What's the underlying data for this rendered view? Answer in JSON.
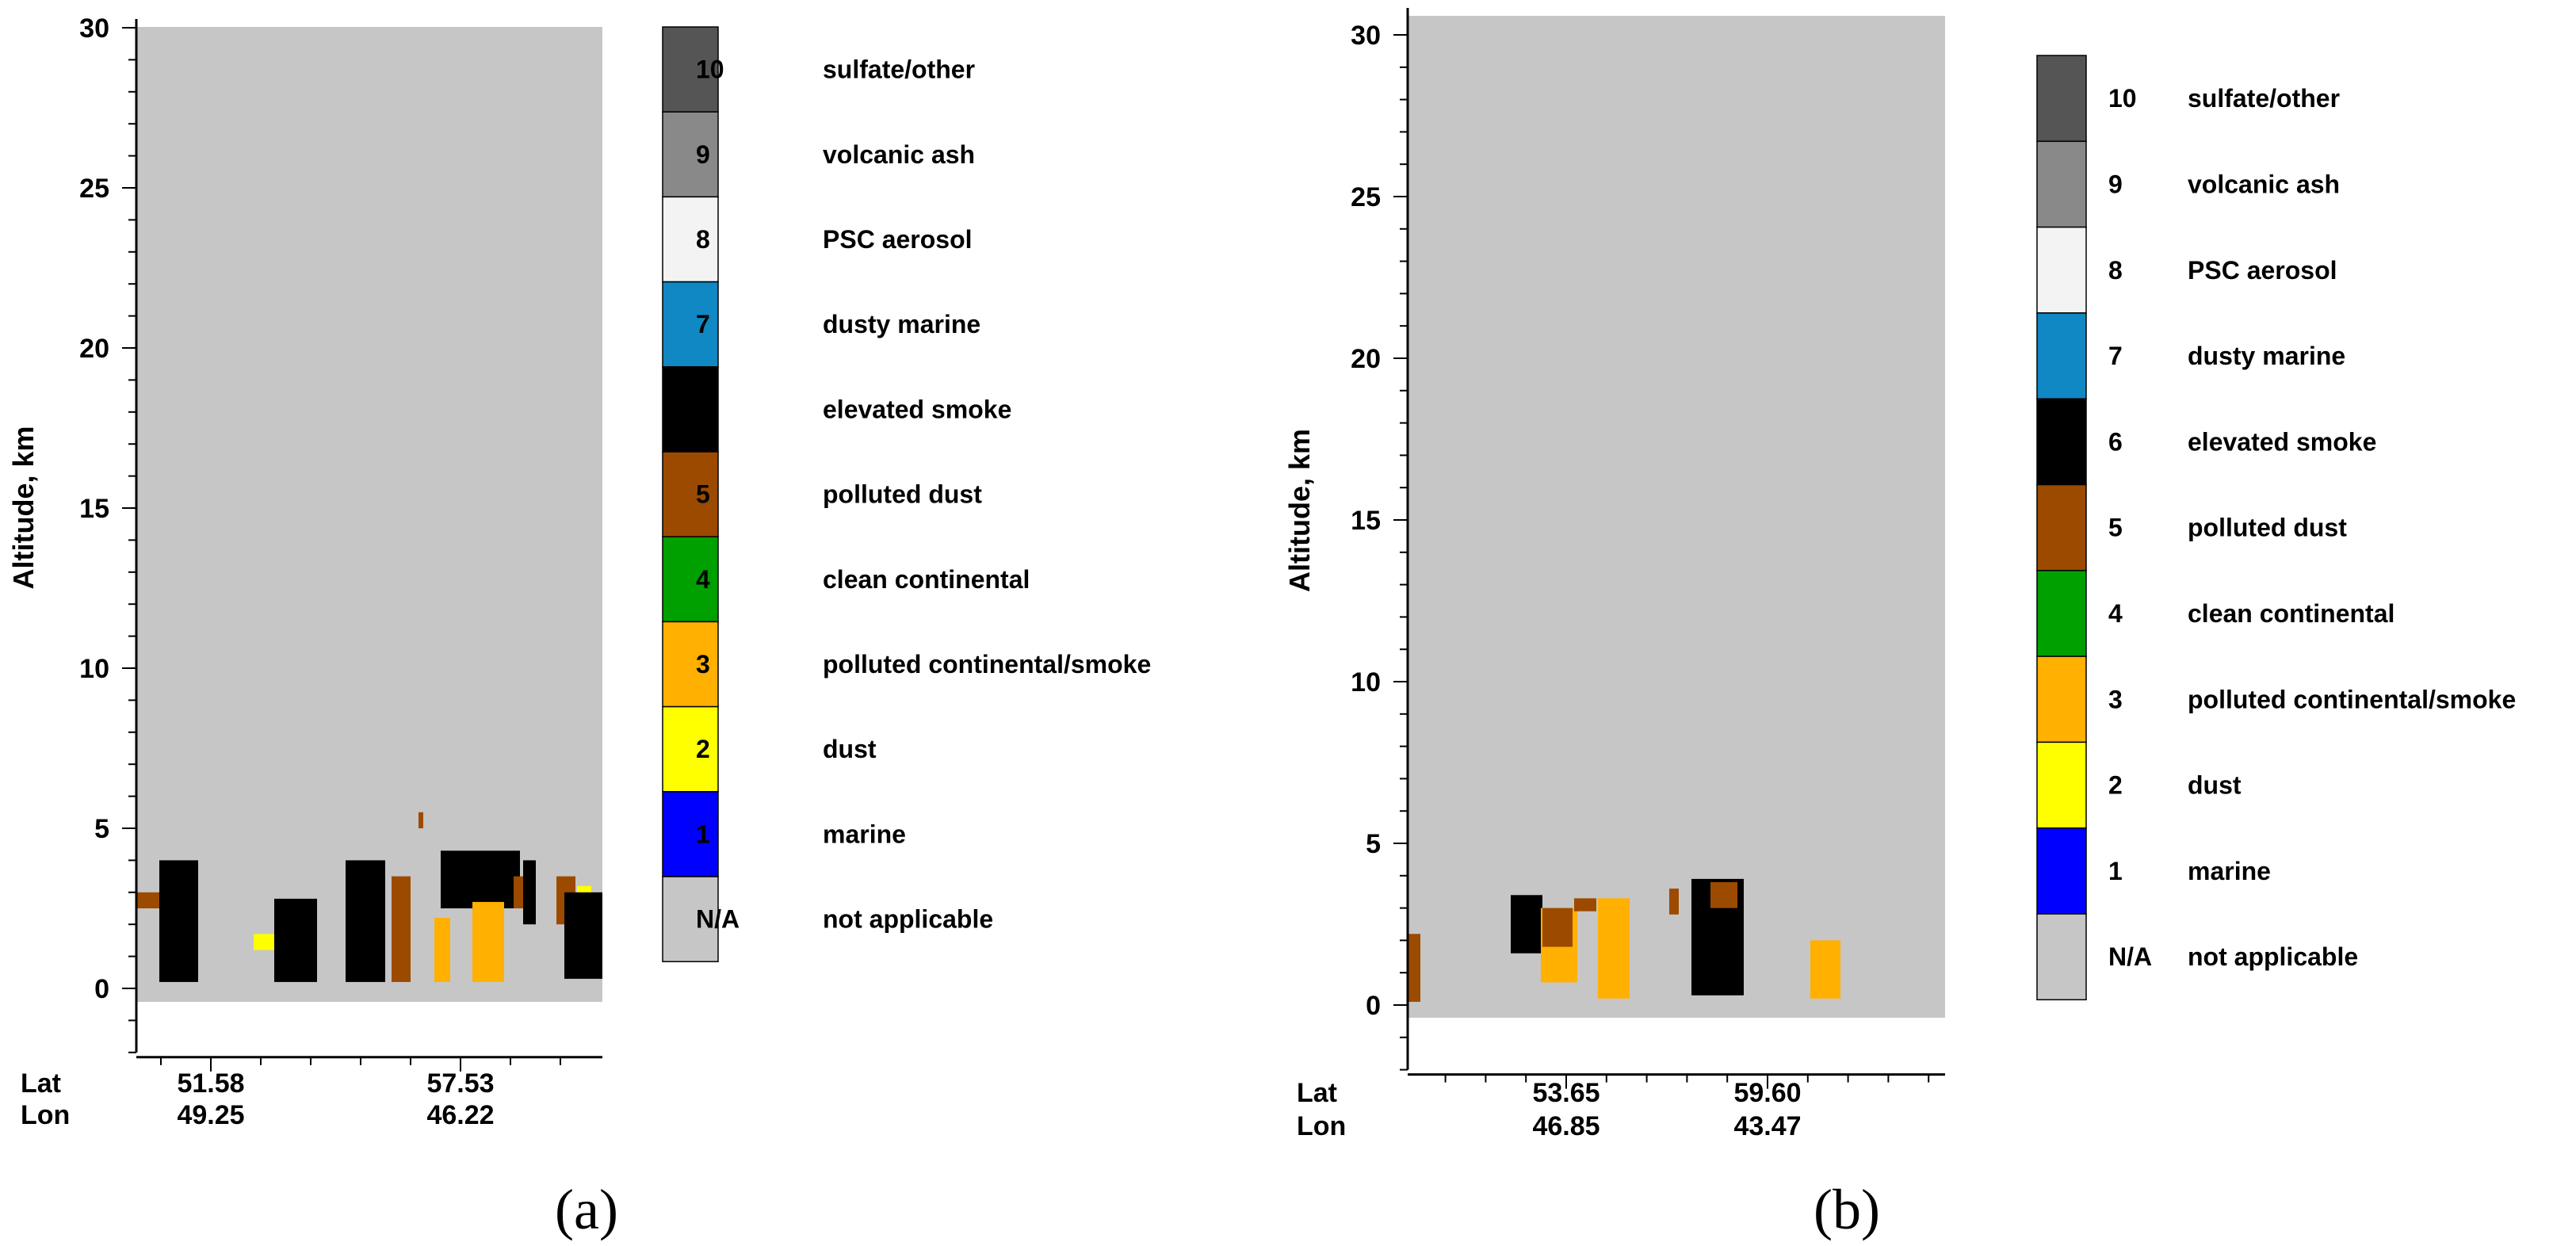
{
  "chart_data": [
    {
      "type": "heatmap",
      "panel_label": "(a)",
      "ylabel": "Altitude, km",
      "ylim": [
        -2,
        30
      ],
      "yticks": [
        "0",
        "5",
        "10",
        "15",
        "20",
        "25",
        "30"
      ],
      "x_row_labels": [
        "Lat",
        "Lon"
      ],
      "x_ticks": [
        {
          "lat": "51.58",
          "lon": "49.25"
        },
        {
          "lat": "57.53",
          "lon": "46.22"
        }
      ],
      "background_class": "N/A",
      "features": [
        {
          "class": 5,
          "altitude_km": [
            2.5,
            3.0
          ]
        },
        {
          "class": 6,
          "altitude_km": [
            0.2,
            4.0
          ]
        },
        {
          "class": 2,
          "altitude_km": [
            1.2,
            1.7
          ]
        },
        {
          "class": 6,
          "altitude_km": [
            0.2,
            2.8
          ]
        },
        {
          "class": 6,
          "altitude_km": [
            0.2,
            4.0
          ]
        },
        {
          "class": 5,
          "altitude_km": [
            0.2,
            3.5
          ]
        },
        {
          "class": 5,
          "altitude_km": [
            5.0,
            5.5
          ]
        },
        {
          "class": 3,
          "altitude_km": [
            0.2,
            2.2
          ]
        },
        {
          "class": 6,
          "altitude_km": [
            2.5,
            4.3
          ]
        },
        {
          "class": 3,
          "altitude_km": [
            0.2,
            2.7
          ]
        },
        {
          "class": 5,
          "altitude_km": [
            2.5,
            3.5
          ]
        },
        {
          "class": 6,
          "altitude_km": [
            2.0,
            4.0
          ]
        },
        {
          "class": 5,
          "altitude_km": [
            2.0,
            3.5
          ]
        },
        {
          "class": 2,
          "altitude_km": [
            2.5,
            3.2
          ]
        },
        {
          "class": 6,
          "altitude_km": [
            0.3,
            3.0
          ]
        }
      ]
    },
    {
      "type": "heatmap",
      "panel_label": "(b)",
      "ylabel": "Altitude, km",
      "ylim": [
        -2,
        30
      ],
      "yticks": [
        "0",
        "5",
        "10",
        "15",
        "20",
        "25",
        "30"
      ],
      "x_row_labels": [
        "Lat",
        "Lon"
      ],
      "x_ticks": [
        {
          "lat": "53.65",
          "lon": "46.85"
        },
        {
          "lat": "59.60",
          "lon": "43.47"
        }
      ],
      "background_class": "N/A",
      "features": [
        {
          "class": 5,
          "altitude_km": [
            0.1,
            2.2
          ]
        },
        {
          "class": 6,
          "altitude_km": [
            1.6,
            3.4
          ]
        },
        {
          "class": 3,
          "altitude_km": [
            0.7,
            3.0
          ]
        },
        {
          "class": 5,
          "altitude_km": [
            1.8,
            3.0
          ]
        },
        {
          "class": 5,
          "altitude_km": [
            2.9,
            3.3
          ]
        },
        {
          "class": 3,
          "altitude_km": [
            0.2,
            3.3
          ]
        },
        {
          "class": 5,
          "altitude_km": [
            2.8,
            3.6
          ]
        },
        {
          "class": 6,
          "altitude_km": [
            0.3,
            3.9
          ]
        },
        {
          "class": 5,
          "altitude_km": [
            3.0,
            3.8
          ]
        },
        {
          "class": 3,
          "altitude_km": [
            0.2,
            2.0
          ]
        }
      ]
    }
  ],
  "legend": [
    {
      "code": "10",
      "label": "sulfate/other",
      "color": "#555555"
    },
    {
      "code": "9",
      "label": "volcanic ash",
      "color": "#898989"
    },
    {
      "code": "8",
      "label": "PSC aerosol",
      "color": "#f3f3f3"
    },
    {
      "code": "7",
      "label": "dusty marine",
      "color": "#1088c4"
    },
    {
      "code": "6",
      "label": "elevated smoke",
      "color": "#000000"
    },
    {
      "code": "5",
      "label": "polluted dust",
      "color": "#9c4a00"
    },
    {
      "code": "4",
      "label": "clean continental",
      "color": "#00a000"
    },
    {
      "code": "3",
      "label": "polluted continental/smoke",
      "color": "#ffb000"
    },
    {
      "code": "2",
      "label": "dust",
      "color": "#ffff00"
    },
    {
      "code": "1",
      "label": "marine",
      "color": "#0000ff"
    },
    {
      "code": "N/A",
      "label": "not applicable",
      "color": "#c6c6c6"
    }
  ]
}
